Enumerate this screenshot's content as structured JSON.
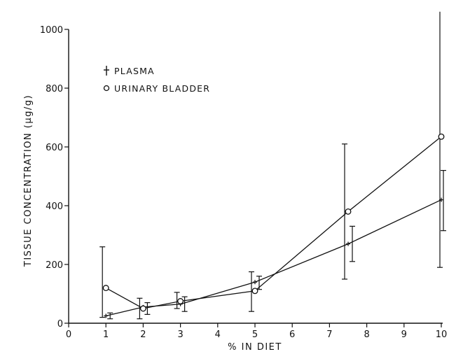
{
  "chart_data": {
    "type": "line",
    "title": "",
    "xlabel": "% IN DIET",
    "ylabel": "TISSUE CONCENTRATION (μg/g)",
    "xlim": [
      0,
      10
    ],
    "ylim": [
      0,
      1000
    ],
    "x_ticks": [
      0,
      1,
      2,
      3,
      4,
      5,
      6,
      7,
      8,
      9,
      10
    ],
    "y_ticks": [
      0,
      200,
      400,
      600,
      800,
      1000
    ],
    "grid": false,
    "legend_position": "top-left",
    "series": [
      {
        "name": "PLASMA",
        "marker": "+",
        "x": [
          1,
          2,
          3,
          5,
          7.5,
          10
        ],
        "y": [
          25,
          55,
          65,
          140,
          270,
          420
        ],
        "err_low": [
          15,
          30,
          40,
          115,
          210,
          315
        ],
        "err_high": [
          35,
          70,
          90,
          160,
          330,
          520
        ]
      },
      {
        "name": "URINARY BLADDER",
        "marker": "o",
        "x": [
          1,
          2,
          3,
          5,
          7.5,
          10
        ],
        "y": [
          120,
          50,
          75,
          110,
          380,
          635
        ],
        "err_low": [
          20,
          15,
          50,
          40,
          150,
          190
        ],
        "err_high": [
          260,
          85,
          105,
          175,
          610,
          1060
        ]
      }
    ]
  }
}
